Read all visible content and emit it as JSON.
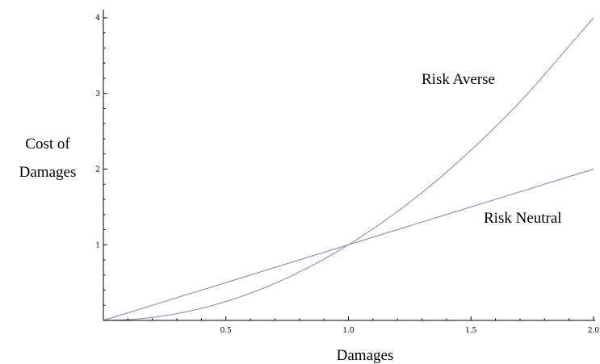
{
  "chart_data": {
    "type": "line",
    "xlabel": "Damages",
    "ylabel": [
      "Cost of",
      "Damages"
    ],
    "xlim": [
      0,
      2
    ],
    "ylim": [
      0,
      4
    ],
    "x_ticks": [
      "0.5",
      "1.0",
      "1.5",
      "2.0"
    ],
    "x_tick_values": [
      0.5,
      1.0,
      1.5,
      2.0
    ],
    "y_ticks": [
      "1",
      "2",
      "3",
      "4"
    ],
    "y_tick_values": [
      1,
      2,
      3,
      4
    ],
    "grid": false,
    "series": [
      {
        "name": "Risk Averse",
        "color": "#9f8fc6",
        "x": [
          0,
          0.25,
          0.5,
          0.75,
          1.0,
          1.25,
          1.5,
          1.75,
          2.0
        ],
        "values": [
          0,
          0.0625,
          0.25,
          0.5625,
          1.0,
          1.5625,
          2.25,
          3.0625,
          4.0
        ]
      },
      {
        "name": "Risk Neutral",
        "color": "#9f8fc6",
        "x": [
          0,
          0.5,
          1.0,
          1.5,
          2.0
        ],
        "values": [
          0,
          0.5,
          1.0,
          1.5,
          2.0
        ]
      }
    ]
  }
}
